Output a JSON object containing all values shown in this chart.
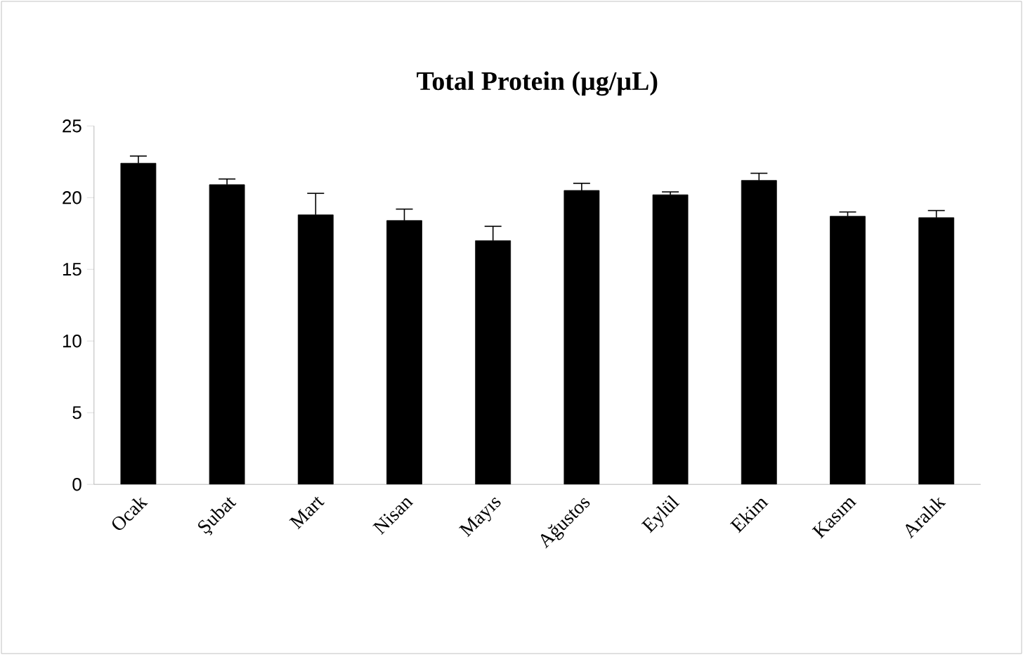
{
  "chart_data": {
    "type": "bar",
    "title": "**Total Protein (µg/µL)**",
    "categories": [
      "Ocak",
      "Şubat",
      "Mart",
      "Nisan",
      "Mayıs",
      "Ağustos",
      "Eylül",
      "Ekim",
      "Kasım",
      "Aralık"
    ],
    "values": [
      22.4,
      20.9,
      18.8,
      18.4,
      17.0,
      20.5,
      20.2,
      21.2,
      18.7,
      18.6
    ],
    "errors": [
      0.5,
      0.4,
      1.5,
      0.8,
      1.0,
      0.5,
      0.2,
      0.5,
      0.3,
      0.5
    ],
    "color": "#000000",
    "ylim": [
      0,
      25
    ],
    "yticks": [
      0,
      5,
      10,
      15,
      20,
      25
    ],
    "grid": false
  }
}
